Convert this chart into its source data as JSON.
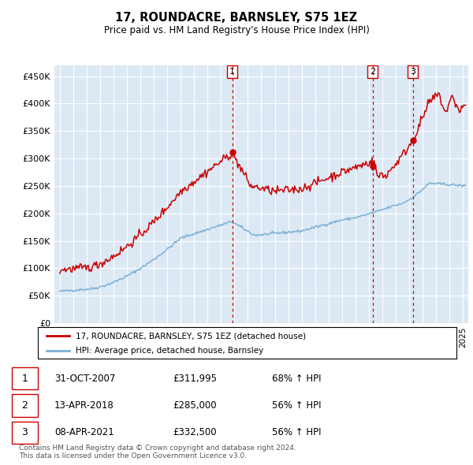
{
  "title": "17, ROUNDACRE, BARNSLEY, S75 1EZ",
  "subtitle": "Price paid vs. HM Land Registry's House Price Index (HPI)",
  "bg_color": "#dce9f5",
  "red_line_color": "#cc0000",
  "blue_line_color": "#7bafd4",
  "grid_color": "#ffffff",
  "sale_year_floats": [
    2007.83,
    2018.29,
    2021.27
  ],
  "sale_prices": [
    311995,
    285000,
    332500
  ],
  "sale_labels": [
    "1",
    "2",
    "3"
  ],
  "legend_label_red": "17, ROUNDACRE, BARNSLEY, S75 1EZ (detached house)",
  "legend_label_blue": "HPI: Average price, detached house, Barnsley",
  "table_data": [
    [
      "1",
      "31-OCT-2007",
      "£311,995",
      "68% ↑ HPI"
    ],
    [
      "2",
      "13-APR-2018",
      "£285,000",
      "56% ↑ HPI"
    ],
    [
      "3",
      "08-APR-2021",
      "£332,500",
      "56% ↑ HPI"
    ]
  ],
  "footer": "Contains HM Land Registry data © Crown copyright and database right 2024.\nThis data is licensed under the Open Government Licence v3.0.",
  "ylim": [
    0,
    470000
  ],
  "yticks": [
    0,
    50000,
    100000,
    150000,
    200000,
    250000,
    300000,
    350000,
    400000,
    450000
  ],
  "ytick_labels": [
    "£0",
    "£50K",
    "£100K",
    "£150K",
    "£200K",
    "£250K",
    "£300K",
    "£350K",
    "£400K",
    "£450K"
  ],
  "xlim_start": 1994.6,
  "xlim_end": 2025.4
}
